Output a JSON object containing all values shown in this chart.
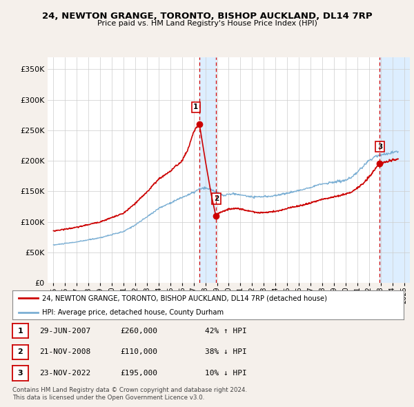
{
  "title": "24, NEWTON GRANGE, TORONTO, BISHOP AUCKLAND, DL14 7RP",
  "subtitle": "Price paid vs. HM Land Registry's House Price Index (HPI)",
  "legend_line1": "24, NEWTON GRANGE, TORONTO, BISHOP AUCKLAND, DL14 7RP (detached house)",
  "legend_line2": "HPI: Average price, detached house, County Durham",
  "footnote1": "Contains HM Land Registry data © Crown copyright and database right 2024.",
  "footnote2": "This data is licensed under the Open Government Licence v3.0.",
  "transactions": [
    {
      "num": "1",
      "date": "29-JUN-2007",
      "price": "£260,000",
      "hpi": "42% ↑ HPI"
    },
    {
      "num": "2",
      "date": "21-NOV-2008",
      "price": "£110,000",
      "hpi": "38% ↓ HPI"
    },
    {
      "num": "3",
      "date": "23-NOV-2022",
      "price": "£195,000",
      "hpi": "10% ↓ HPI"
    }
  ],
  "vline1_x": 2007.49,
  "vline2_x": 2008.89,
  "vline3_x": 2022.89,
  "span12_start": 2007.49,
  "span12_end": 2008.89,
  "span3_start": 2022.89,
  "span3_end": 2025.5,
  "marker1_y": 260000,
  "marker2_y": 110000,
  "marker3_y": 195000,
  "ylim": [
    0,
    370000
  ],
  "xlim_start": 1994.5,
  "xlim_end": 2025.5,
  "hpi_color": "#7bafd4",
  "price_color": "#cc0000",
  "vline_color": "#cc0000",
  "span_color": "#ddeeff",
  "bg_color": "#f5f0eb",
  "plot_bg": "#ffffff",
  "grid_color": "#cccccc",
  "yticks": [
    0,
    50000,
    100000,
    150000,
    200000,
    250000,
    300000,
    350000
  ],
  "xticks": [
    1995,
    1996,
    1997,
    1998,
    1999,
    2000,
    2001,
    2002,
    2003,
    2004,
    2005,
    2006,
    2007,
    2008,
    2009,
    2010,
    2011,
    2012,
    2013,
    2014,
    2015,
    2016,
    2017,
    2018,
    2019,
    2020,
    2021,
    2022,
    2023,
    2024,
    2025
  ]
}
